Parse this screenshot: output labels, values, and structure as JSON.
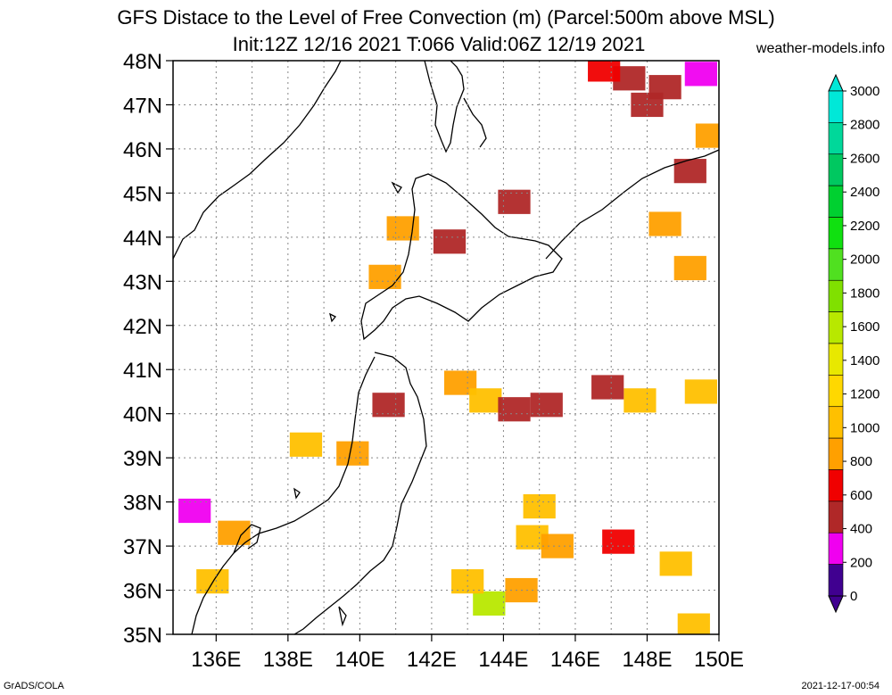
{
  "title_line1": "GFS Distace to the Level of Free Convection (m) (Parcel:500m above MSL)",
  "title_line2": "Init:12Z 12/16 2021 T:066 Valid:06Z 12/19 2021",
  "site": "weather-models.info",
  "footer_left": "GrADS/COLA",
  "footer_right": "2021-12-17-00:54",
  "map": {
    "lat_labels": [
      "48N",
      "47N",
      "46N",
      "45N",
      "44N",
      "43N",
      "42N",
      "41N",
      "40N",
      "39N",
      "38N",
      "37N",
      "36N",
      "35N"
    ],
    "lon_labels": [
      "136E",
      "138E",
      "140E",
      "142E",
      "144E",
      "146E",
      "148E",
      "150E"
    ],
    "lat_range": [
      35,
      48
    ],
    "lon_range": [
      134.8,
      150
    ]
  },
  "colorbar": {
    "labels": [
      "3000",
      "2800",
      "2600",
      "2400",
      "2200",
      "2000",
      "1800",
      "1600",
      "1400",
      "1200",
      "1000",
      "800",
      "600",
      "400",
      "200",
      "0"
    ],
    "colors": [
      "#00e8d8",
      "#00d89a",
      "#00c860",
      "#00d030",
      "#10e010",
      "#50e020",
      "#80e000",
      "#b8e800",
      "#e8e800",
      "#ffd800",
      "#ffc000",
      "#ffa000",
      "#f00000",
      "#b02828",
      "#f000f0",
      "#400090"
    ]
  },
  "chart_data": {
    "type": "heatmap",
    "title": "GFS Distace to the Level of Free Convection (m) (Parcel:500m above MSL)",
    "subtitle": "Init:12Z 12/16 2021 T:066 Valid:06Z 12/19 2021",
    "x_ticks": [
      "136E",
      "138E",
      "140E",
      "142E",
      "144E",
      "146E",
      "148E",
      "150E"
    ],
    "y_ticks": [
      "48N",
      "47N",
      "46N",
      "45N",
      "44N",
      "43N",
      "42N",
      "41N",
      "40N",
      "39N",
      "38N",
      "37N",
      "36N",
      "35N"
    ],
    "color_levels": [
      0,
      200,
      400,
      600,
      800,
      1000,
      1200,
      1400,
      1600,
      1800,
      2000,
      2200,
      2400,
      2600,
      2800,
      3000
    ],
    "cells": [
      {
        "lon": 147.5,
        "lat": 47.6,
        "value": 500
      },
      {
        "lon": 148.5,
        "lat": 47.4,
        "value": 500
      },
      {
        "lon": 149.5,
        "lat": 47.7,
        "value": 300
      },
      {
        "lon": 146.8,
        "lat": 47.8,
        "value": 700
      },
      {
        "lon": 148.0,
        "lat": 47.0,
        "value": 500
      },
      {
        "lon": 149.8,
        "lat": 46.3,
        "value": 800
      },
      {
        "lon": 149.2,
        "lat": 45.5,
        "value": 500
      },
      {
        "lon": 148.5,
        "lat": 44.3,
        "value": 800
      },
      {
        "lon": 149.2,
        "lat": 43.3,
        "value": 900
      },
      {
        "lon": 141.2,
        "lat": 44.2,
        "value": 900
      },
      {
        "lon": 142.5,
        "lat": 43.9,
        "value": 500
      },
      {
        "lon": 144.3,
        "lat": 44.8,
        "value": 500
      },
      {
        "lon": 140.7,
        "lat": 43.1,
        "value": 900
      },
      {
        "lon": 142.8,
        "lat": 40.7,
        "value": 900
      },
      {
        "lon": 143.5,
        "lat": 40.3,
        "value": 1000
      },
      {
        "lon": 144.3,
        "lat": 40.1,
        "value": 500
      },
      {
        "lon": 145.2,
        "lat": 40.2,
        "value": 500
      },
      {
        "lon": 147.8,
        "lat": 40.3,
        "value": 1000
      },
      {
        "lon": 149.5,
        "lat": 40.5,
        "value": 1000
      },
      {
        "lon": 146.9,
        "lat": 40.6,
        "value": 500
      },
      {
        "lon": 140.8,
        "lat": 40.2,
        "value": 400
      },
      {
        "lon": 138.5,
        "lat": 39.3,
        "value": 1000
      },
      {
        "lon": 139.8,
        "lat": 39.1,
        "value": 900
      },
      {
        "lon": 145.0,
        "lat": 37.9,
        "value": 1000
      },
      {
        "lon": 144.8,
        "lat": 37.2,
        "value": 1100
      },
      {
        "lon": 145.5,
        "lat": 37.0,
        "value": 900
      },
      {
        "lon": 147.2,
        "lat": 37.1,
        "value": 700
      },
      {
        "lon": 148.8,
        "lat": 36.6,
        "value": 1000
      },
      {
        "lon": 143.6,
        "lat": 35.7,
        "value": 1600
      },
      {
        "lon": 143.0,
        "lat": 36.2,
        "value": 1000
      },
      {
        "lon": 144.5,
        "lat": 36.0,
        "value": 900
      },
      {
        "lon": 135.4,
        "lat": 37.8,
        "value": 200
      },
      {
        "lon": 136.5,
        "lat": 37.3,
        "value": 800
      },
      {
        "lon": 135.9,
        "lat": 36.2,
        "value": 1000
      },
      {
        "lon": 149.3,
        "lat": 35.2,
        "value": 1000
      }
    ]
  }
}
